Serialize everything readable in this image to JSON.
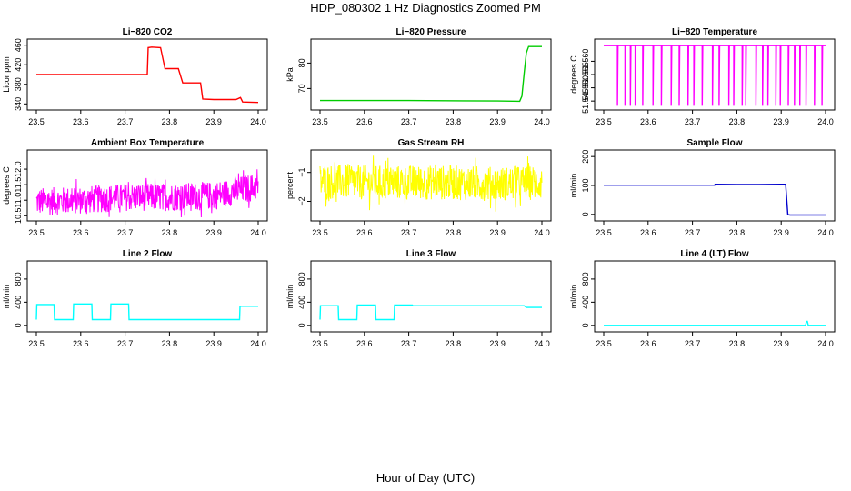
{
  "figure": {
    "title": "HDP_080302  1 Hz Diagnostics Zoomed PM",
    "xlabel": "Hour of Day (UTC)"
  },
  "chart_data": [
    {
      "type": "line",
      "title": "Li−820 CO2",
      "ylabel": "Licor ppm",
      "color": "#ff0000",
      "xlim": [
        23.5,
        24.0
      ],
      "ylim": [
        335,
        465
      ],
      "xticks": [
        "23.5",
        "23.6",
        "23.7",
        "23.8",
        "23.9",
        "24.0"
      ],
      "yticks": [
        "340",
        "380",
        "420",
        "460"
      ],
      "x": [
        23.5,
        23.75,
        23.752,
        23.76,
        23.78,
        23.79,
        23.8,
        23.82,
        23.83,
        23.85,
        23.87,
        23.875,
        23.9,
        23.95,
        23.96,
        23.965,
        24.0
      ],
      "y": [
        400,
        400,
        455,
        456,
        455,
        412,
        412,
        412,
        383,
        383,
        383,
        350,
        349,
        349,
        353,
        344,
        343
      ]
    },
    {
      "type": "line",
      "title": "Li−820 Pressure",
      "ylabel": "kPa",
      "color": "#00cc00",
      "xlim": [
        23.5,
        24.0
      ],
      "ylim": [
        63,
        88
      ],
      "xticks": [
        "23.5",
        "23.6",
        "23.7",
        "23.8",
        "23.9",
        "24.0"
      ],
      "yticks": [
        "70",
        "80"
      ],
      "x": [
        23.5,
        23.7,
        23.9,
        23.95,
        23.955,
        23.96,
        23.965,
        23.97,
        24.0
      ],
      "y": [
        65.3,
        65.3,
        65.1,
        65.0,
        67,
        76,
        84,
        86.5,
        86.5
      ]
    },
    {
      "type": "line",
      "title": "Li−820 Temperature",
      "ylabel": "degrees C",
      "color": "#ff00ff",
      "xlim": [
        23.5,
        24.0
      ],
      "ylim": [
        51.543,
        51.567
      ],
      "xticks": [
        "23.5",
        "23.6",
        "23.7",
        "23.8",
        "23.9",
        "24.0"
      ],
      "yticks": [
        "51.545",
        "51.550",
        "51.555",
        "51.560"
      ],
      "baseline": 51.5659,
      "low": 51.5432,
      "drop_x": [
        23.531,
        23.548,
        23.56,
        23.571,
        23.588,
        23.611,
        23.63,
        23.652,
        23.67,
        23.69,
        23.703,
        23.722,
        23.745,
        23.76,
        23.782,
        23.793,
        23.812,
        23.82,
        23.843,
        23.858,
        23.87,
        23.888,
        23.898,
        23.916,
        23.93,
        23.942,
        23.956,
        23.975,
        23.992
      ]
    },
    {
      "type": "line",
      "title": "Ambient Box Temperature",
      "ylabel": "degrees C",
      "color": "#ff00ff",
      "xlim": [
        23.5,
        24.0
      ],
      "ylim": [
        10.45,
        12.5
      ],
      "xticks": [
        "23.5",
        "23.6",
        "23.7",
        "23.8",
        "23.9",
        "24.0"
      ],
      "yticks": [
        "10.5",
        "11.0",
        "11.5",
        "12.0"
      ],
      "x": [
        23.5,
        23.6,
        23.7,
        23.8,
        23.9,
        24.0
      ],
      "y": [
        10.95,
        11.0,
        11.1,
        11.1,
        11.15,
        11.45
      ],
      "noise": 0.45
    },
    {
      "type": "line",
      "title": "Gas Stream RH",
      "ylabel": "percent",
      "color": "#ffff00",
      "xlim": [
        23.5,
        24.0
      ],
      "ylim": [
        -2.55,
        -0.35
      ],
      "xticks": [
        "23.5",
        "23.6",
        "23.7",
        "23.8",
        "23.9",
        "24.0"
      ],
      "yticks": [
        "−2",
        "−1"
      ],
      "x": [
        23.5,
        23.6,
        23.7,
        23.8,
        23.9,
        24.0
      ],
      "y": [
        -1.3,
        -1.35,
        -1.35,
        -1.35,
        -1.4,
        -1.35
      ],
      "noise": 0.6
    },
    {
      "type": "line",
      "title": "Sample Flow",
      "ylabel": "ml/min",
      "color": "#0000cc",
      "xlim": [
        23.5,
        24.0
      ],
      "ylim": [
        -10,
        210
      ],
      "xticks": [
        "23.5",
        "23.6",
        "23.7",
        "23.8",
        "23.9",
        "24.0"
      ],
      "yticks": [
        "0",
        "100",
        "200"
      ],
      "x": [
        23.5,
        23.75,
        23.751,
        23.8,
        23.85,
        23.9,
        23.91,
        23.915,
        23.92,
        24.0
      ],
      "y": [
        101,
        101,
        104,
        103,
        103,
        104,
        104,
        -1,
        -2,
        -2
      ]
    },
    {
      "type": "line",
      "title": "Line 2 Flow",
      "ylabel": "ml/min",
      "color": "#00ffff",
      "xlim": [
        23.5,
        24.0
      ],
      "ylim": [
        -50,
        1050
      ],
      "xticks": [
        "23.5",
        "23.6",
        "23.7",
        "23.8",
        "23.9",
        "24.0"
      ],
      "yticks": [
        "0",
        "400",
        "800"
      ],
      "x": [
        23.5,
        23.501,
        23.54,
        23.541,
        23.583,
        23.584,
        23.625,
        23.626,
        23.667,
        23.668,
        23.708,
        23.709,
        23.958,
        23.959,
        24.0
      ],
      "y": [
        100,
        360,
        360,
        100,
        100,
        370,
        370,
        100,
        100,
        370,
        370,
        100,
        100,
        330,
        330
      ]
    },
    {
      "type": "line",
      "title": "Line 3 Flow",
      "ylabel": "ml/min",
      "color": "#00ffff",
      "xlim": [
        23.5,
        24.0
      ],
      "ylim": [
        -50,
        1050
      ],
      "xticks": [
        "23.5",
        "23.6",
        "23.7",
        "23.8",
        "23.9",
        "24.0"
      ],
      "yticks": [
        "0",
        "400",
        "800"
      ],
      "x": [
        23.5,
        23.501,
        23.541,
        23.542,
        23.583,
        23.584,
        23.625,
        23.626,
        23.667,
        23.668,
        23.708,
        23.709,
        23.96,
        23.965,
        24.0
      ],
      "y": [
        100,
        340,
        340,
        100,
        100,
        350,
        350,
        100,
        100,
        350,
        350,
        340,
        340,
        310,
        310
      ]
    },
    {
      "type": "line",
      "title": "Line 4 (LT) Flow",
      "ylabel": "ml/min",
      "color": "#00ffff",
      "xlim": [
        23.5,
        24.0
      ],
      "ylim": [
        -50,
        1050
      ],
      "xticks": [
        "23.5",
        "23.6",
        "23.7",
        "23.8",
        "23.9",
        "24.0"
      ],
      "yticks": [
        "0",
        "400",
        "800"
      ],
      "x": [
        23.5,
        23.955,
        23.957,
        23.959,
        23.961,
        24.0
      ],
      "y": [
        0,
        0,
        70,
        70,
        0,
        0
      ]
    }
  ]
}
